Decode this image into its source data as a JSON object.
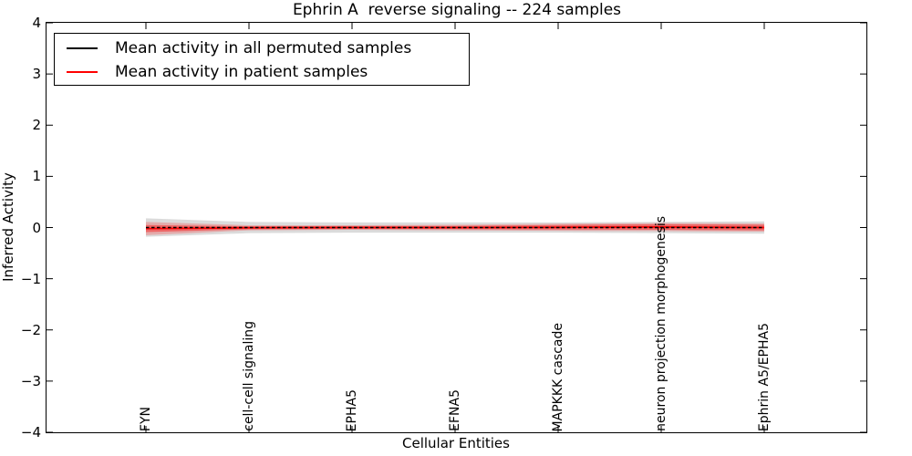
{
  "chart": {
    "title": "Ephrin A  reverse signaling -- 224 samples",
    "xlabel": "Cellular Entities",
    "ylabel": "Inferred Activity",
    "ytick_labels": [
      "4",
      "3",
      "2",
      "1",
      "0",
      "−1",
      "−2",
      "−3",
      "−4"
    ],
    "yticks": [
      4,
      3,
      2,
      1,
      0,
      -1,
      -2,
      -3,
      -4
    ]
  },
  "legend": {
    "items": [
      {
        "label": "Mean activity in all permuted samples",
        "color": "#000000"
      },
      {
        "label": "Mean activity in patient samples",
        "color": "#ff0000"
      }
    ]
  },
  "chart_data": {
    "type": "line",
    "title": "Ephrin A  reverse signaling -- 224 samples",
    "xlabel": "Cellular Entities",
    "ylabel": "Inferred Activity",
    "ylim": [
      -4,
      4
    ],
    "yticks": [
      4,
      3,
      2,
      1,
      0,
      -1,
      -2,
      -3,
      -4
    ],
    "grid": false,
    "legend_position": "upper left",
    "x_tick_rotation": 90,
    "categories": [
      "FYN",
      "cell-cell signaling",
      "EPHA5",
      "EFNA5",
      "MAPKKK cascade",
      "neuron projection morphogenesis",
      "Ephrin A5/EPHA5"
    ],
    "series": [
      {
        "name": "Mean activity in all permuted samples",
        "color": "#000000",
        "line_style": "dashed",
        "values": [
          0.0,
          0.0,
          0.0,
          0.0,
          0.0,
          0.0,
          0.0
        ],
        "band_halfwidth": [
          0.18,
          0.11,
          0.1,
          0.1,
          0.1,
          0.11,
          0.12
        ],
        "band_color": "#cccccc",
        "band_opacity": 0.7
      },
      {
        "name": "Mean activity in patient samples",
        "color": "#ff0000",
        "line_style": "solid",
        "values": [
          -0.02,
          -0.005,
          0.0,
          0.0,
          0.005,
          0.01,
          0.0
        ],
        "band_halfwidth": [
          0.13,
          0.05,
          0.045,
          0.055,
          0.07,
          0.08,
          0.08
        ],
        "inner_band_halfwidth": [
          0.07,
          0.03,
          0.028,
          0.032,
          0.045,
          0.055,
          0.055
        ],
        "band_color": "#ff0000",
        "band_opacity": 0.22,
        "inner_band_opacity": 0.4
      }
    ]
  }
}
